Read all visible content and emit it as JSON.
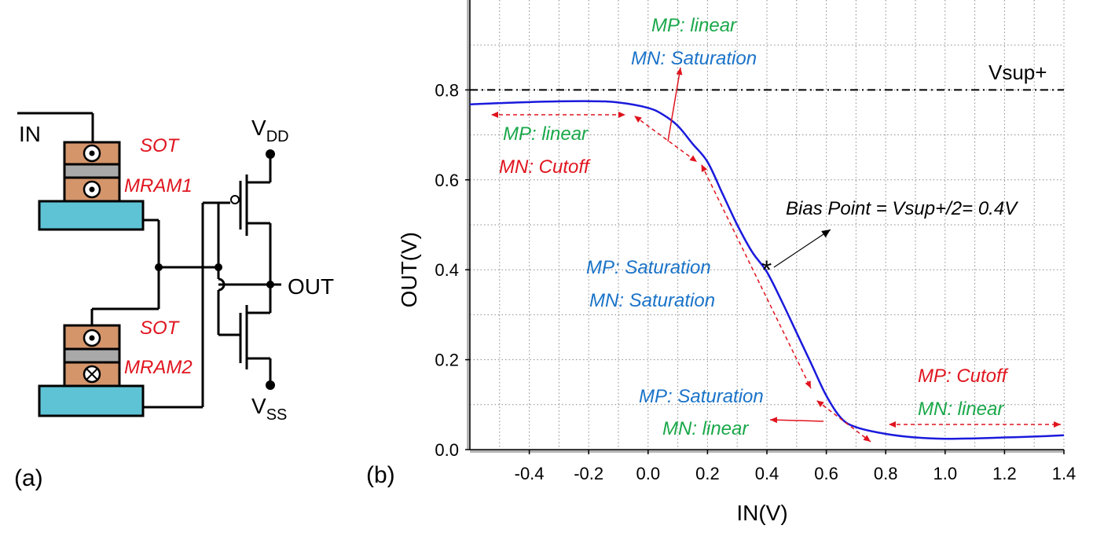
{
  "panel_a": {
    "label": "(a)",
    "in_label": "IN",
    "out_label": "OUT",
    "vdd": {
      "main": "V",
      "sub": "DD"
    },
    "vss": {
      "main": "V",
      "sub": "SS"
    },
    "mram1": {
      "line1": "SOT",
      "line2": "MRAM1"
    },
    "mram2": {
      "line1": "SOT",
      "line2": "MRAM2"
    }
  },
  "panel_b": {
    "label": "(b)",
    "annotations": {
      "top_mp": "MP:  linear",
      "top_mn": "MN: Saturation",
      "left_mp": "MP:  linear",
      "left_mn": "MN: Cutoff",
      "mid_mp": "MP:  Saturation",
      "mid_mn": "MN: Saturation",
      "low_mp": "MP:  Saturation",
      "low_mn": "MN: linear",
      "right_mp": "MP:  Cutoff",
      "right_mn": "MN: linear",
      "bias": "Bias Point =  Vsup+/2= 0.4V",
      "vsup": "Vsup+"
    },
    "colors": {
      "curve": "#1a1adc",
      "green": "#1aa84a",
      "blue": "#1a73c8",
      "red": "#e0141e"
    }
  },
  "chart_data": {
    "type": "line",
    "xlabel": "IN(V)",
    "ylabel": "OUT(V)",
    "xlim": [
      -0.6,
      1.4
    ],
    "ylim": [
      0.0,
      1.0
    ],
    "xticks": [
      "-0.4",
      "-0.2",
      "0.0",
      "0.2",
      "0.4",
      "0.6",
      "0.8",
      "1.0",
      "1.2",
      "1.4"
    ],
    "yticks": [
      "0.0",
      "0.2",
      "0.4",
      "0.6",
      "0.8"
    ],
    "grid": true,
    "reference_line": {
      "y": 0.8,
      "name": "Vsup+"
    },
    "bias_point": {
      "x": 0.4,
      "y": 0.4
    },
    "series": [
      {
        "x": [
          -0.6,
          -0.4,
          -0.2,
          -0.1,
          0.0,
          0.05,
          0.1,
          0.15,
          0.2,
          0.25,
          0.3,
          0.35,
          0.4,
          0.45,
          0.5,
          0.55,
          0.6,
          0.65,
          0.7,
          0.8,
          0.9,
          1.0,
          1.1,
          1.2,
          1.3,
          1.4
        ],
        "y": [
          0.768,
          0.773,
          0.775,
          0.772,
          0.76,
          0.745,
          0.72,
          0.68,
          0.64,
          0.57,
          0.5,
          0.44,
          0.395,
          0.33,
          0.26,
          0.19,
          0.12,
          0.07,
          0.05,
          0.035,
          0.027,
          0.024,
          0.025,
          0.027,
          0.029,
          0.032
        ]
      }
    ]
  }
}
